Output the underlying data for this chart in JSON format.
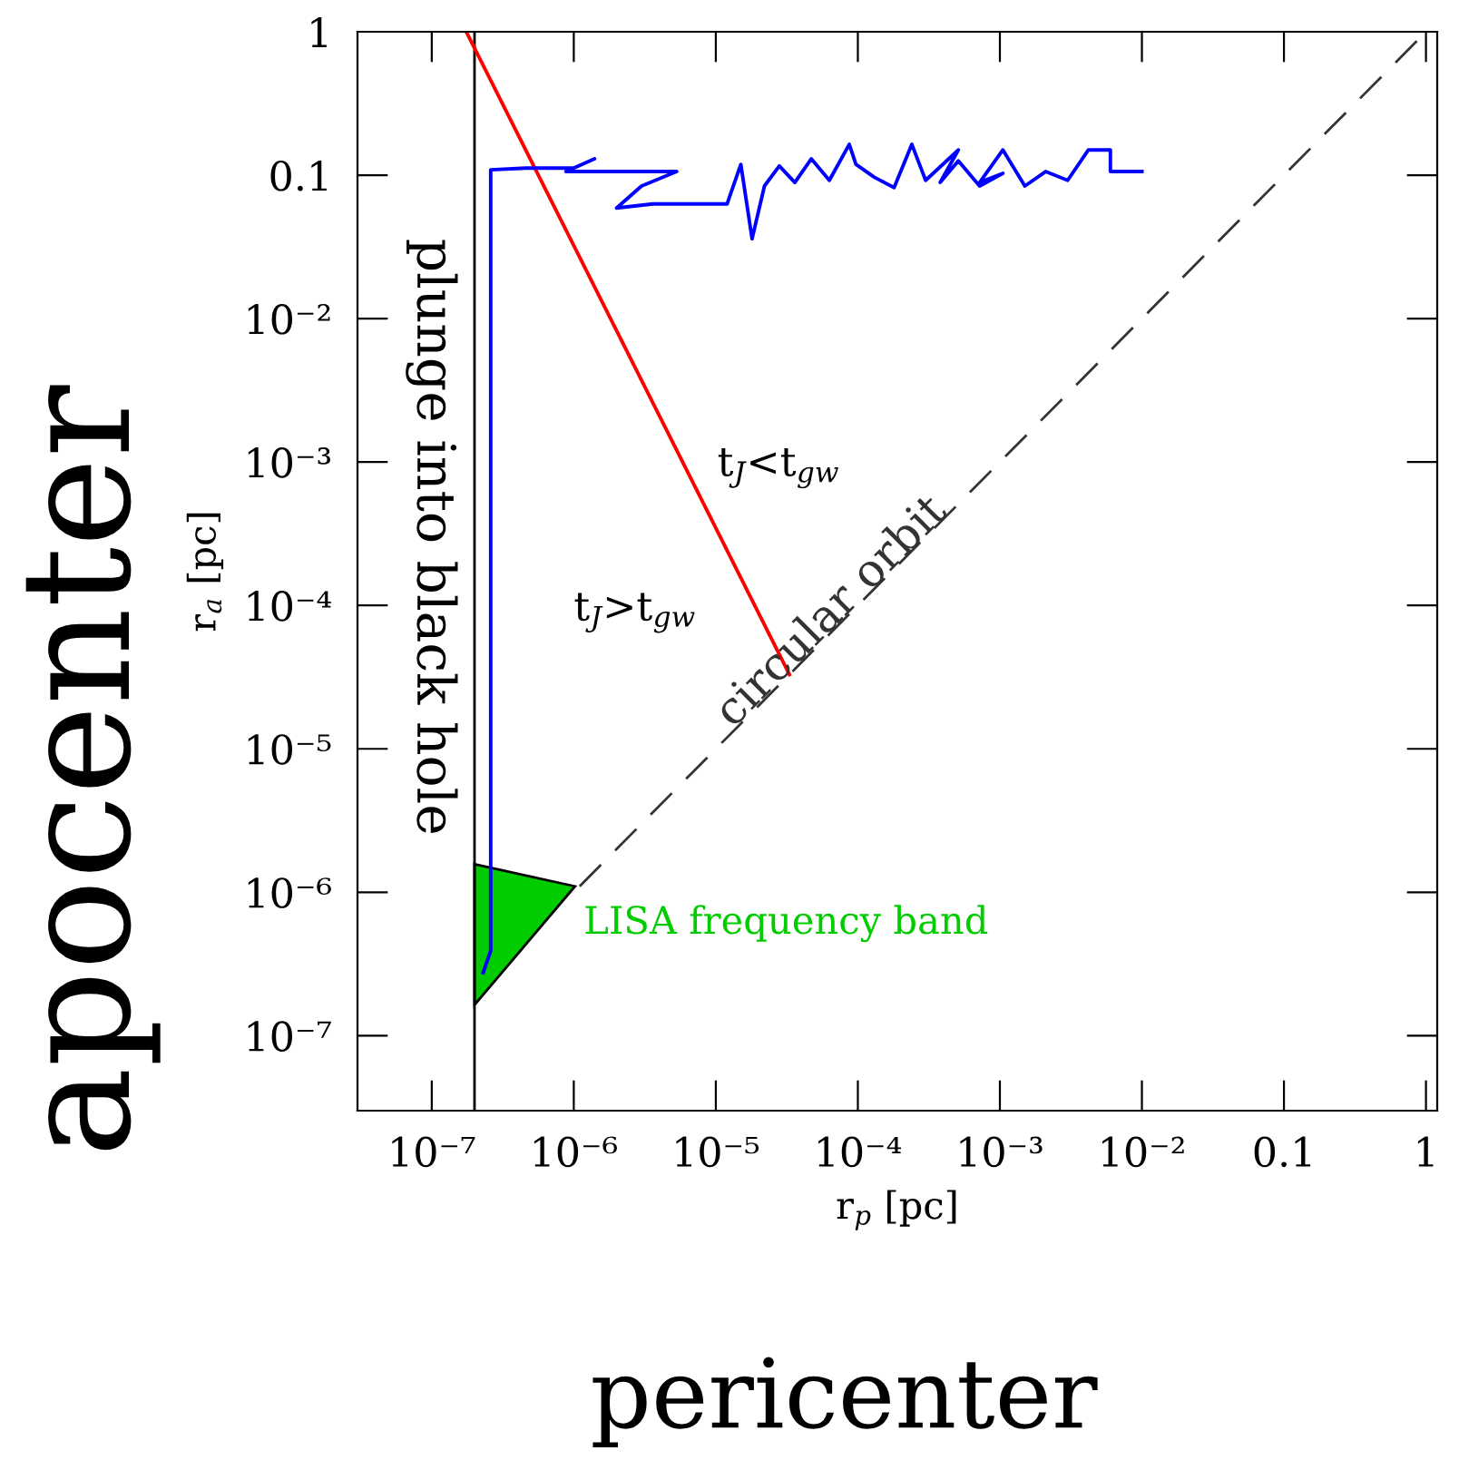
{
  "chart_data": {
    "type": "line",
    "xlabel": "r$_{p}$ [pc]",
    "ylabel": "r$_{a}$ [pc]",
    "log": "xy",
    "grid": false,
    "legend": false,
    "xlim": [
      3e-08,
      1.2
    ],
    "ylim": [
      3e-08,
      1
    ],
    "xticks": [
      {
        "value": 1e-07,
        "label": "10⁻⁷"
      },
      {
        "value": 1e-06,
        "label": "10⁻⁶"
      },
      {
        "value": 1e-05,
        "label": "10⁻⁵"
      },
      {
        "value": 0.0001,
        "label": "10⁻⁴"
      },
      {
        "value": 0.001,
        "label": "10⁻³"
      },
      {
        "value": 0.01,
        "label": "10⁻²"
      },
      0.1,
      1
    ],
    "yticks": [
      {
        "value": 1e-07,
        "label": "10⁻⁷"
      },
      {
        "value": 1e-06,
        "label": "10⁻⁶"
      },
      {
        "value": 1e-05,
        "label": "10⁻⁵"
      },
      {
        "value": 0.0001,
        "label": "10⁻⁴"
      },
      {
        "value": 0.001,
        "label": "10⁻³"
      },
      {
        "value": 0.01,
        "label": "10⁻²"
      },
      0.1,
      1
    ],
    "ref_lines": [
      {
        "axis": "x",
        "value": 2e-07,
        "label": "plunge into black hole",
        "color": "#000000"
      }
    ],
    "series": [
      {
        "type": "area",
        "name": "LISA frequency band",
        "color": "#00cc00",
        "x": [
          2e-07,
          1.02e-06,
          2e-07
        ],
        "values": [
          1.57e-06,
          1.1e-06,
          1.64e-07
        ]
      },
      {
        "name": "circular orbit",
        "color": "#333333",
        "line_style": "dashed",
        "x": [
          1.1e-06,
          1
        ],
        "values": [
          1.1e-06,
          1
        ]
      },
      {
        "color": "#ff0000",
        "x": [
          1.75e-07,
          3.3e-05
        ],
        "values": [
          1,
          3.3e-05
        ]
      },
      {
        "color": "#0000ff",
        "x": [
          0.01,
          0.006,
          0.006,
          0.0042,
          0.003,
          0.0021,
          0.0015,
          0.00105,
          0.00072,
          0.00105,
          0.00072,
          0.00051,
          0.00038,
          0.00051,
          0.0003,
          0.00024,
          0.00018,
          0.00013,
          9.7e-05,
          8.7e-05,
          6.3e-05,
          4.7e-05,
          3.6e-05,
          2.8e-05,
          2.2e-05,
          1.8e-05,
          1.5e-05,
          1.2e-05,
          3.6e-06,
          2e-06,
          3e-06,
          5.3e-06,
          8.8e-07,
          1.4e-06,
          1e-06,
          4.6e-07,
          2.6e-07,
          2.6e-07,
          2.3e-07
        ],
        "values": [
          0.106,
          0.106,
          0.15,
          0.15,
          0.092,
          0.106,
          0.084,
          0.15,
          0.089,
          0.103,
          0.084,
          0.126,
          0.089,
          0.15,
          0.092,
          0.164,
          0.082,
          0.097,
          0.119,
          0.164,
          0.092,
          0.13,
          0.089,
          0.116,
          0.084,
          0.036,
          0.119,
          0.063,
          0.063,
          0.059,
          0.084,
          0.106,
          0.106,
          0.13,
          0.112,
          0.112,
          0.109,
          3.9e-07,
          2.75e-07
        ]
      }
    ],
    "annotations": [
      "t$_{J}$<t$_{gw}$",
      "t$_{J}$>t$_{gw}$",
      "apocenter",
      "pericenter"
    ]
  }
}
